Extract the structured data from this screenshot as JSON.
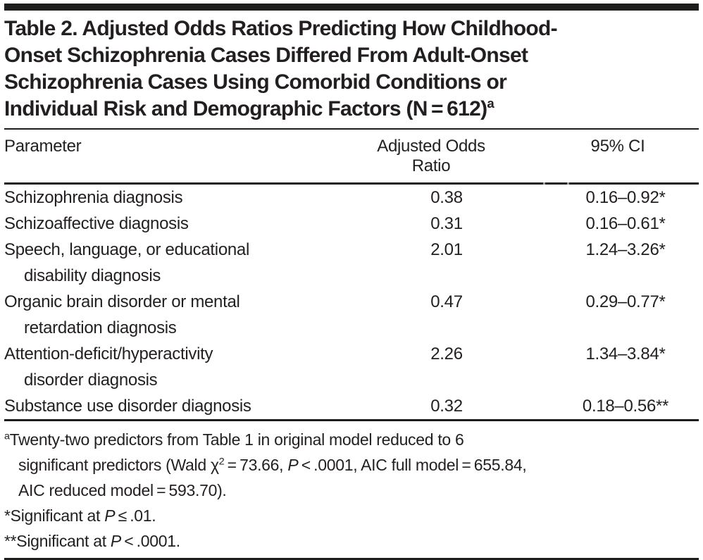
{
  "title": {
    "line1": "Table 2. Adjusted Odds Ratios Predicting How Childhood-",
    "line2": "Onset Schizophrenia Cases Differed From Adult-Onset",
    "line3": "Schizophrenia Cases Using Comorbid Conditions or",
    "line4": "Individual Risk and Demographic Factors (N = 612)",
    "superscript": "a"
  },
  "table": {
    "headers": {
      "parameter": "Parameter",
      "aor": "Adjusted Odds Ratio",
      "ci": "95% CI"
    },
    "rows": [
      {
        "param1": "Schizophrenia diagnosis",
        "param2": "",
        "aor": "0.38",
        "ci": "0.16–0.92*"
      },
      {
        "param1": "Schizoaffective diagnosis",
        "param2": "",
        "aor": "0.31",
        "ci": "0.16–0.61*"
      },
      {
        "param1": "Speech, language, or educational",
        "param2": "disability diagnosis",
        "aor": "2.01",
        "ci": "1.24–3.26*"
      },
      {
        "param1": "Organic brain disorder or mental",
        "param2": "retardation diagnosis",
        "aor": "0.47",
        "ci": "0.29–0.77*"
      },
      {
        "param1": "Attention-deficit/hyperactivity",
        "param2": "disorder diagnosis",
        "aor": "2.26",
        "ci": "1.34–3.84*"
      },
      {
        "param1": "Substance use disorder diagnosis",
        "param2": "",
        "aor": "0.32",
        "ci": "0.18–0.56**"
      }
    ]
  },
  "footnotes": {
    "a": {
      "sup": "a",
      "line1": "Twenty-two predictors from Table 1 in original model reduced to 6",
      "line2_pre": "significant predictors (Wald χ",
      "chi_sup": "2",
      "line2_mid": " = 73.66, ",
      "p1": "P",
      "line2_end": " < .0001, AIC full model = 655.84,",
      "line3": "AIC reduced model = 593.70)."
    },
    "star": {
      "pre": "*Significant at ",
      "p": "P",
      "end": " ≤ .01."
    },
    "dstar": {
      "pre": "**Significant at ",
      "p": "P",
      "end": " < .0001."
    }
  },
  "colors": {
    "text": "#231f20",
    "rule": "#1d1d1b",
    "background": "#ffffff"
  }
}
